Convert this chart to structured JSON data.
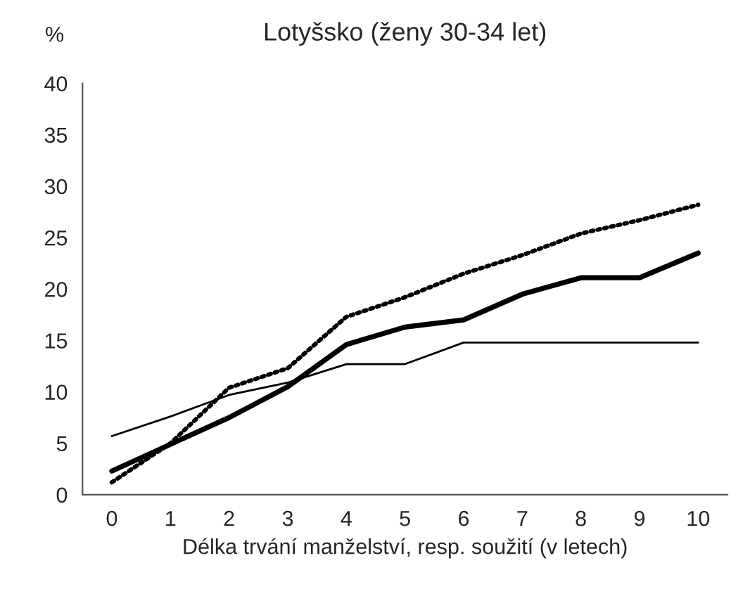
{
  "chart_data": {
    "type": "line",
    "title": "Lotyšsko (ženy 30-34 let)",
    "xlabel": "Délka trvání manželství, resp. soužití (v letech)",
    "ylabel": "%",
    "categories": [
      "0",
      "1",
      "2",
      "3",
      "4",
      "5",
      "6",
      "7",
      "8",
      "9",
      "10"
    ],
    "series": [
      {
        "color": "#000000",
        "line_style": "solid",
        "values": [
          2.3,
          4.9,
          7.5,
          10.5,
          14.6,
          16.3,
          17.0,
          19.5,
          21.1,
          21.1,
          23.5
        ]
      },
      {
        "color": "#000000",
        "line_style": "solid",
        "values": [
          5.7,
          7.6,
          9.7,
          10.9,
          12.7,
          12.7,
          14.8,
          14.8,
          14.8,
          14.8,
          14.8
        ]
      },
      {
        "color": "#000000",
        "line_style": "dotted",
        "values": [
          1.2,
          5.0,
          10.4,
          12.3,
          17.3,
          19.2,
          21.5,
          23.3,
          25.4,
          26.7,
          28.2
        ]
      }
    ],
    "ylim": [
      0,
      40
    ],
    "yticks": [
      0,
      5,
      10,
      15,
      20,
      25,
      30,
      35,
      40
    ],
    "grid": false,
    "legend": false,
    "marker": "none"
  }
}
